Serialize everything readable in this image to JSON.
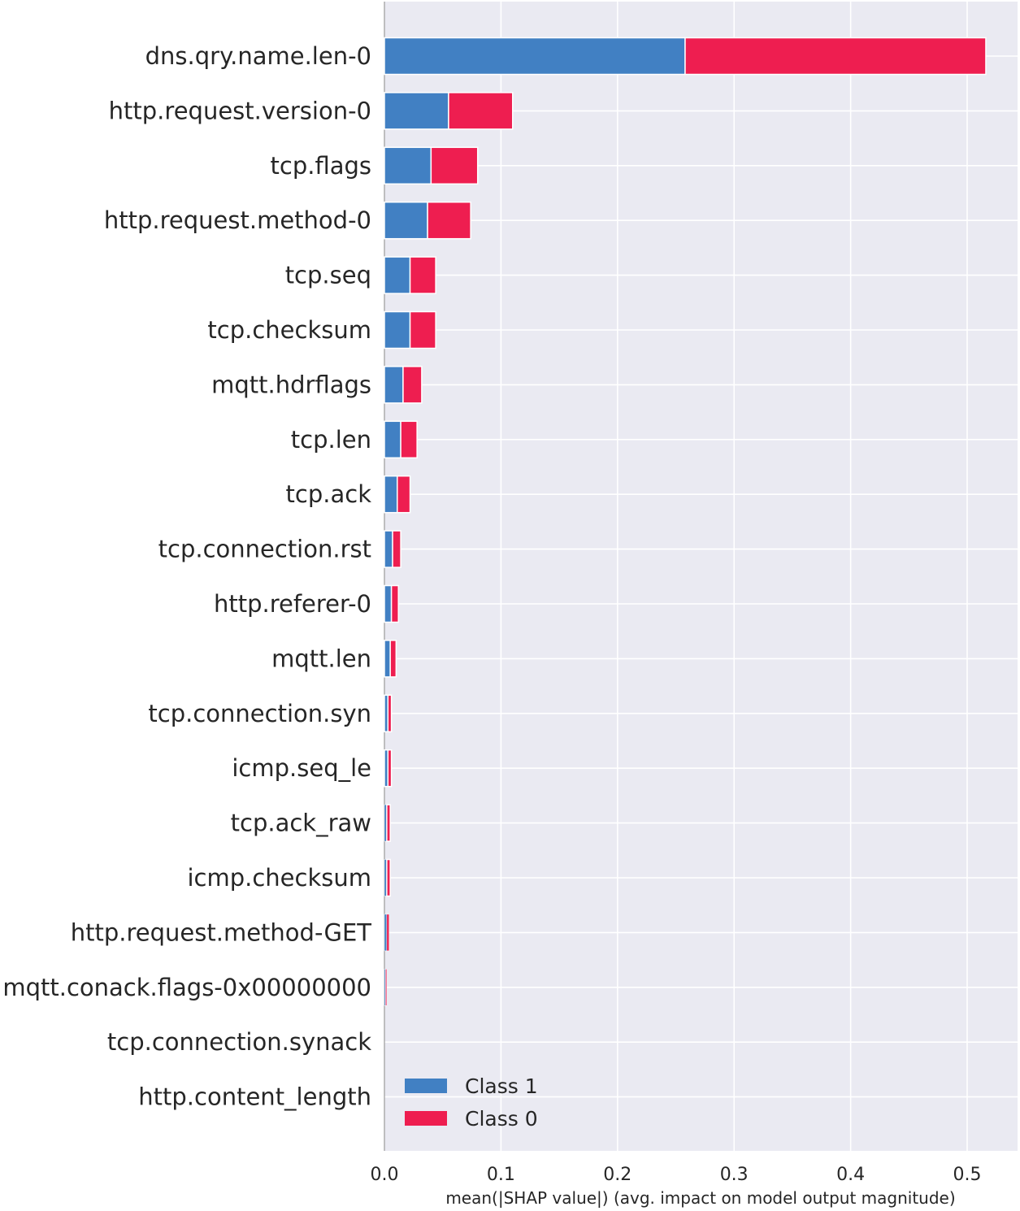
{
  "chart_data": {
    "type": "bar",
    "orientation": "horizontal",
    "stacked": true,
    "categories": [
      "dns.qry.name.len-0",
      "http.request.version-0",
      "tcp.flags",
      "http.request.method-0",
      "tcp.seq",
      "tcp.checksum",
      "mqtt.hdrflags",
      "tcp.len",
      "tcp.ack",
      "tcp.connection.rst",
      "http.referer-0",
      "mqtt.len",
      "tcp.connection.syn",
      "icmp.seq_le",
      "tcp.ack_raw",
      "icmp.checksum",
      "http.request.method-GET",
      "mqtt.conack.flags-0x00000000",
      "tcp.connection.synack",
      "http.content_length"
    ],
    "series": [
      {
        "name": "Class 1",
        "color": "#4180c3",
        "values": [
          0.258,
          0.055,
          0.04,
          0.037,
          0.022,
          0.022,
          0.016,
          0.014,
          0.011,
          0.007,
          0.006,
          0.005,
          0.003,
          0.003,
          0.002,
          0.002,
          0.002,
          0.001,
          0.0,
          0.0
        ]
      },
      {
        "name": "Class 0",
        "color": "#ee1e50",
        "values": [
          0.258,
          0.055,
          0.04,
          0.037,
          0.022,
          0.022,
          0.016,
          0.014,
          0.011,
          0.007,
          0.006,
          0.005,
          0.003,
          0.003,
          0.003,
          0.003,
          0.002,
          0.001,
          0.0,
          0.0
        ]
      }
    ],
    "xlabel": "mean(|SHAP value|) (avg. impact on model output magnitude)",
    "ylabel": "",
    "title": "",
    "xlim": [
      0.0,
      0.54
    ],
    "xticks": [
      0.0,
      0.1,
      0.2,
      0.3,
      0.4,
      0.5
    ],
    "xtick_labels": [
      "0.0",
      "0.1",
      "0.2",
      "0.3",
      "0.4",
      "0.5"
    ],
    "grid": true,
    "background": "#eaeaf2",
    "legend": {
      "position": "bottom-left",
      "entries": [
        "Class 1",
        "Class 0"
      ]
    }
  }
}
